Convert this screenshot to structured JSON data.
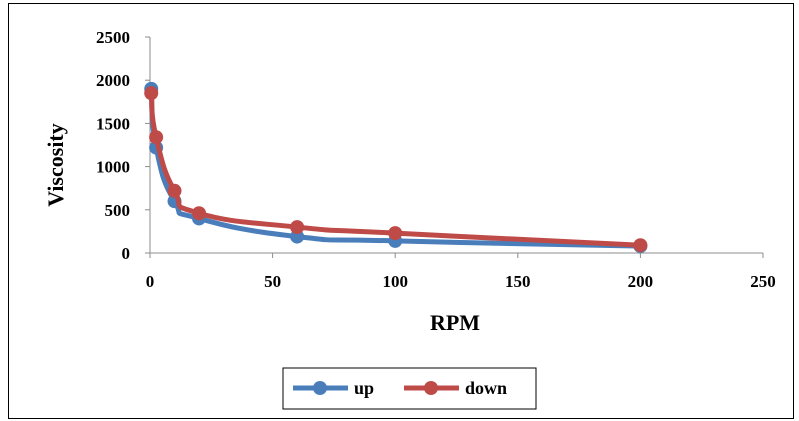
{
  "chart_data": {
    "type": "line",
    "xlabel": "RPM",
    "ylabel": "Viscosity",
    "xlim": [
      0,
      250
    ],
    "ylim": [
      0,
      2500
    ],
    "xticks": [
      0,
      50,
      100,
      150,
      200,
      250
    ],
    "yticks": [
      0,
      500,
      1000,
      1500,
      2000,
      2500
    ],
    "grid": false,
    "legend": "bottom",
    "series": [
      {
        "name": "up",
        "color": "#4A7EBB",
        "x": [
          0.5,
          2.5,
          10,
          20,
          60,
          100,
          200
        ],
        "y": [
          1900,
          1220,
          600,
          400,
          190,
          140,
          80
        ]
      },
      {
        "name": "down",
        "color": "#BE4B48",
        "x": [
          0.5,
          2.5,
          10,
          20,
          60,
          100,
          200
        ],
        "y": [
          1850,
          1340,
          720,
          460,
          300,
          230,
          90
        ]
      }
    ]
  }
}
